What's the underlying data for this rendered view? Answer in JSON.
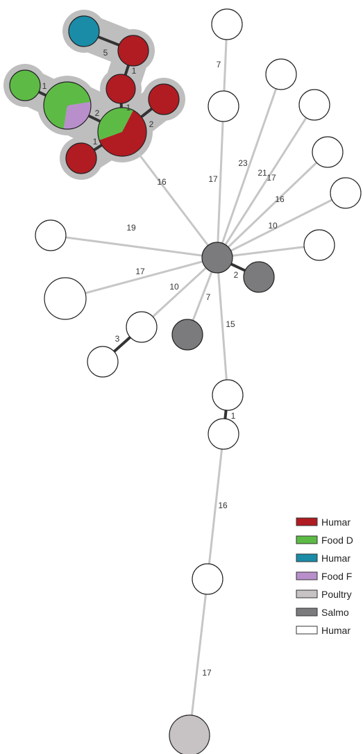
{
  "colors": {
    "human_red": "#b01c22",
    "food_green": "#5dbb45",
    "human_blue": "#1a8ca8",
    "food_purple": "#b98fcb",
    "poultry_light": "#c7c2c3",
    "salmonella_dark": "#7b7b7d",
    "human_white": "#ffffff",
    "edge_gray": "#c6c6c6",
    "edge_dark": "#333333",
    "cluster_shade": "#bebebe"
  },
  "edge_labels": [
    "7",
    "5",
    "1",
    "1",
    "1",
    "2",
    "2",
    "1",
    "23",
    "21",
    "17",
    "17",
    "16",
    "16",
    "10",
    "19",
    "17",
    "10",
    "2",
    "7",
    "15",
    "3",
    "1",
    "16",
    "17"
  ],
  "legend": [
    {
      "label": "Humar",
      "color_key": "human_red"
    },
    {
      "label": "Food D",
      "color_key": "food_green"
    },
    {
      "label": "Humar",
      "color_key": "human_blue"
    },
    {
      "label": "Food F",
      "color_key": "food_purple"
    },
    {
      "label": "Poultry",
      "color_key": "poultry_light"
    },
    {
      "label": "Salmo",
      "color_key": "salmonella_dark"
    },
    {
      "label": "Humar",
      "color_key": "human_white"
    }
  ]
}
